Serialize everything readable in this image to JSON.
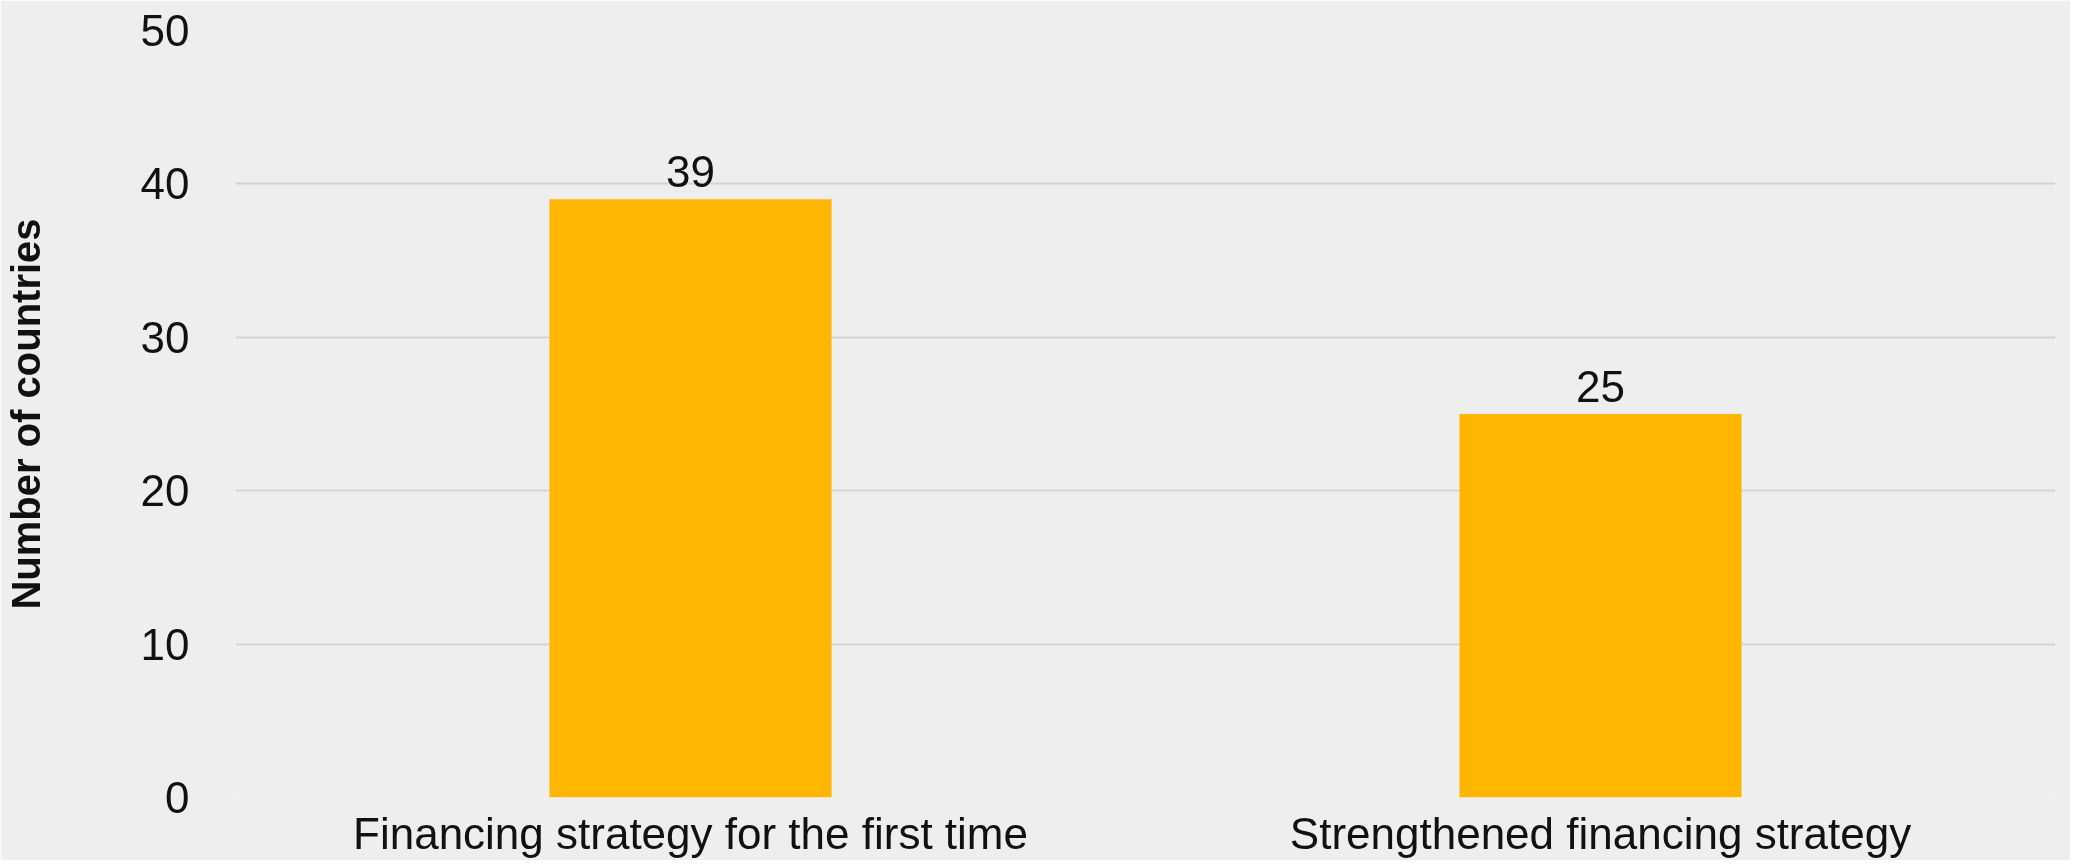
{
  "chart_data": {
    "type": "bar",
    "ylabel": "Number of countries",
    "categories": [
      "Financing strategy for the first time",
      "Strengthened financing strategy"
    ],
    "values": [
      39,
      25
    ],
    "color": "#ffb600",
    "ylim": [
      0,
      50
    ],
    "yticks": [
      0,
      10,
      20,
      30,
      40,
      50
    ],
    "grid": "y",
    "data_labels": true
  }
}
